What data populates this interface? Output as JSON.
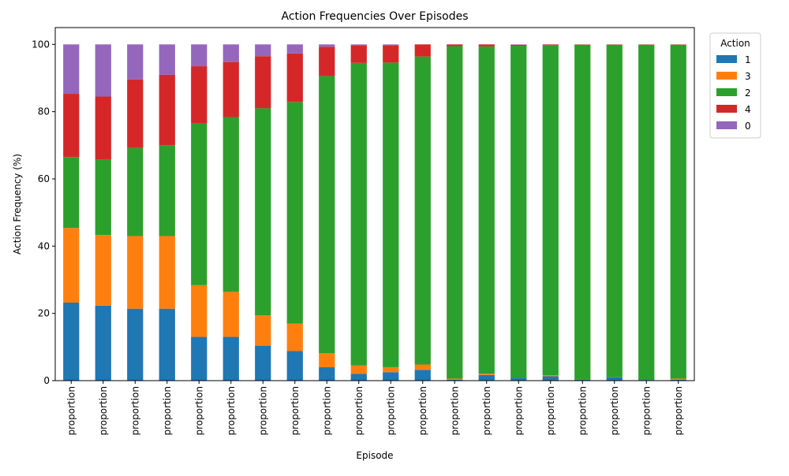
{
  "chart_data": {
    "type": "bar",
    "stacked": true,
    "title": "Action Frequencies Over Episodes",
    "xlabel": "Episode",
    "ylabel": "Action Frequency (%)",
    "ylim": [
      0,
      105
    ],
    "yticks": [
      0,
      20,
      40,
      60,
      80,
      100
    ],
    "categories": [
      "proportion",
      "proportion",
      "proportion",
      "proportion",
      "proportion",
      "proportion",
      "proportion",
      "proportion",
      "proportion",
      "proportion",
      "proportion",
      "proportion",
      "proportion",
      "proportion",
      "proportion",
      "proportion",
      "proportion",
      "proportion",
      "proportion",
      "proportion"
    ],
    "legend": {
      "title": "Action",
      "placement": "outside-top-right"
    },
    "grid": false,
    "series": [
      {
        "name": "1",
        "color": "#1f77b4",
        "values": [
          23.2,
          22.3,
          21.4,
          21.4,
          13.0,
          13.0,
          10.4,
          8.8,
          4.0,
          2.0,
          2.5,
          3.2,
          0.3,
          1.7,
          0.8,
          1.3,
          0.3,
          1.0,
          0.2,
          0.3
        ]
      },
      {
        "name": "3",
        "color": "#ff7f0e",
        "values": [
          22.2,
          21.0,
          21.6,
          21.6,
          15.4,
          13.4,
          9.0,
          8.2,
          4.2,
          2.5,
          1.5,
          1.6,
          0.3,
          0.4,
          0.0,
          0.3,
          0.0,
          0.0,
          0.0,
          0.3
        ]
      },
      {
        "name": "2",
        "color": "#2ca02c",
        "values": [
          21.1,
          22.4,
          26.2,
          27.0,
          48.1,
          52.0,
          61.6,
          65.9,
          82.4,
          90.0,
          90.6,
          91.6,
          98.9,
          97.3,
          98.8,
          98.2,
          99.6,
          98.9,
          99.7,
          99.3
        ]
      },
      {
        "name": "4",
        "color": "#d62728",
        "values": [
          18.8,
          18.8,
          20.4,
          21.0,
          17.0,
          16.3,
          15.5,
          14.4,
          8.7,
          5.2,
          5.1,
          3.6,
          0.5,
          0.6,
          0.3,
          0.2,
          0.1,
          0.1,
          0.1,
          0.1
        ]
      },
      {
        "name": "0",
        "color": "#9467bd",
        "values": [
          14.7,
          15.5,
          10.4,
          9.0,
          6.5,
          5.3,
          3.5,
          2.7,
          0.7,
          0.3,
          0.3,
          0.0,
          0.0,
          0.0,
          0.1,
          0.0,
          0.0,
          0.0,
          0.0,
          0.0
        ]
      }
    ]
  }
}
